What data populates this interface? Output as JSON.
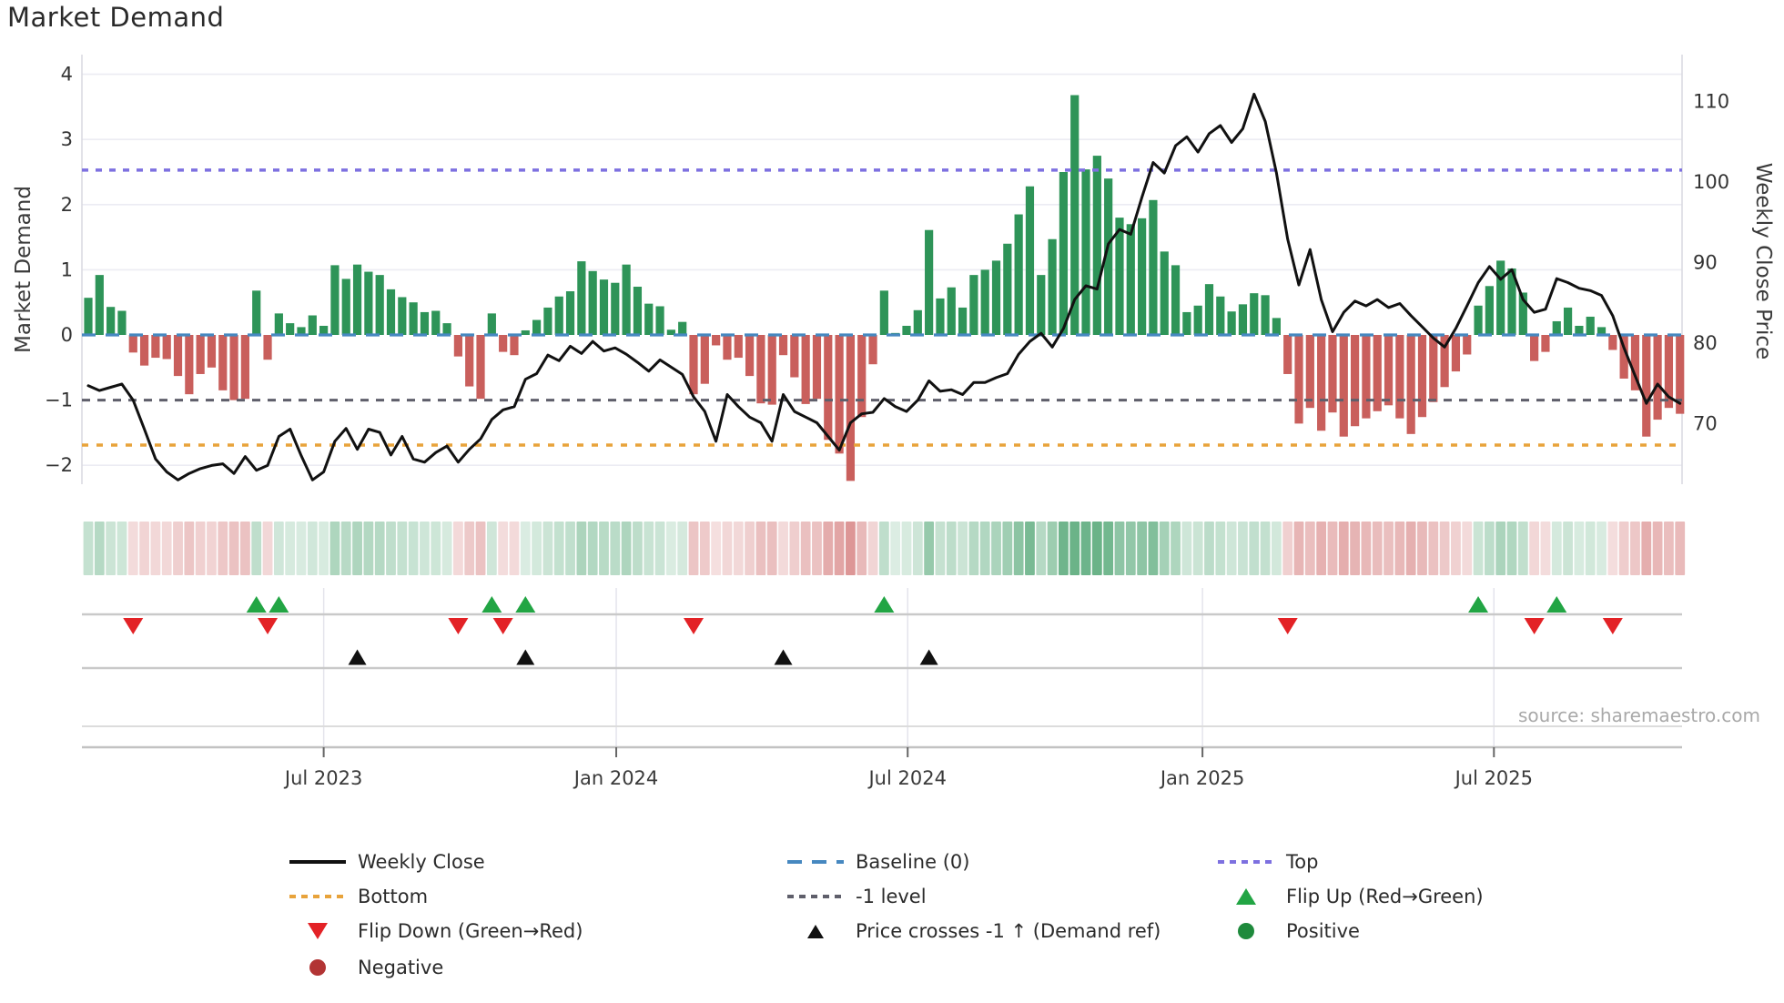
{
  "title": "Market Demand",
  "source": {
    "text": "source: sharemaestro.com"
  },
  "axes": {
    "left_label": "Market Demand",
    "right_label": "Weekly Close Price",
    "left_ticks": [
      4,
      3,
      2,
      1,
      0,
      -1,
      -2
    ],
    "right_ticks": [
      110,
      100,
      90,
      80,
      70
    ],
    "x_ticks": [
      {
        "label": "Jul 2023",
        "week": 21.0
      },
      {
        "label": "Jan 2024",
        "week": 47.1
      },
      {
        "label": "Jul 2024",
        "week": 73.1
      },
      {
        "label": "Jan 2025",
        "week": 99.4
      },
      {
        "label": "Jul 2025",
        "week": 125.4
      }
    ]
  },
  "ref_lines": {
    "baseline": {
      "label": "Baseline (0)",
      "value": 0,
      "color": "#4688c0"
    },
    "top": {
      "label": "Top",
      "value": 2.53,
      "color": "#7d70e0"
    },
    "bottom": {
      "label": "Bottom",
      "value": -1.69,
      "color": "#e8a33b"
    },
    "minus_one": {
      "label": "-1 level",
      "value": -1,
      "color": "#5f5f6b"
    }
  },
  "chart_data": {
    "type": "bar+line",
    "x_unit": "week",
    "start_date": "2023-02-05",
    "n_points": 143,
    "ylim_left": [
      -2.6,
      4.2
    ],
    "ylim_right": [
      62,
      112
    ],
    "grid_demand_levels": [
      4,
      3,
      2,
      1,
      -2
    ],
    "series": [
      {
        "name": "Market Demand",
        "type": "bar",
        "axis": "left",
        "positive_color": "#2e9458",
        "negative_color": "#c95f5c",
        "values": [
          0.57,
          0.92,
          0.43,
          0.37,
          -0.27,
          -0.47,
          -0.35,
          -0.37,
          -0.63,
          -0.91,
          -0.6,
          -0.5,
          -0.85,
          -1.0,
          -0.98,
          0.68,
          -0.38,
          0.33,
          0.18,
          0.12,
          0.3,
          0.14,
          1.07,
          0.86,
          1.08,
          0.97,
          0.92,
          0.7,
          0.58,
          0.5,
          0.35,
          0.37,
          0.18,
          -0.33,
          -0.79,
          -0.98,
          0.33,
          -0.26,
          -0.31,
          0.07,
          0.23,
          0.42,
          0.59,
          0.67,
          1.13,
          0.98,
          0.85,
          0.8,
          1.08,
          0.74,
          0.48,
          0.44,
          0.08,
          0.2,
          -0.91,
          -0.75,
          -0.16,
          -0.38,
          -0.35,
          -0.63,
          -1.05,
          -1.07,
          -0.31,
          -0.65,
          -1.06,
          -0.98,
          -1.61,
          -1.82,
          -2.24,
          -1.26,
          -0.45,
          0.68,
          0.03,
          0.14,
          0.38,
          1.61,
          0.56,
          0.73,
          0.42,
          0.92,
          1.0,
          1.14,
          1.4,
          1.85,
          2.28,
          0.92,
          1.47,
          2.5,
          3.68,
          2.54,
          2.75,
          2.4,
          1.8,
          1.7,
          1.79,
          2.07,
          1.28,
          1.07,
          0.35,
          0.45,
          0.78,
          0.59,
          0.36,
          0.47,
          0.64,
          0.61,
          0.26,
          -0.6,
          -1.36,
          -1.12,
          -1.47,
          -1.19,
          -1.56,
          -1.4,
          -1.28,
          -1.17,
          -1.08,
          -1.28,
          -1.52,
          -1.26,
          -1.03,
          -0.8,
          -0.56,
          -0.3,
          0.45,
          0.75,
          1.14,
          1.02,
          0.65,
          -0.4,
          -0.26,
          0.21,
          0.42,
          0.14,
          0.28,
          0.12,
          -0.23,
          -0.67,
          -0.85,
          -1.56,
          -1.3,
          -1.12,
          -1.21
        ]
      },
      {
        "name": "Weekly Close",
        "type": "line",
        "axis": "right",
        "color": "#111111",
        "values": [
          74.7,
          74.1,
          74.5,
          74.9,
          72.9,
          69.3,
          65.6,
          64.0,
          63.0,
          63.8,
          64.4,
          64.8,
          65.0,
          63.8,
          65.9,
          64.2,
          64.8,
          68.4,
          69.3,
          66.0,
          63.0,
          64.0,
          67.8,
          69.4,
          66.8,
          69.3,
          68.9,
          66.1,
          68.4,
          65.6,
          65.2,
          66.4,
          67.2,
          65.2,
          66.8,
          68.1,
          70.5,
          71.7,
          72.1,
          75.5,
          76.2,
          78.5,
          77.8,
          79.6,
          78.7,
          80.2,
          79.0,
          79.4,
          78.6,
          77.6,
          76.5,
          77.9,
          77.0,
          76.1,
          73.3,
          71.5,
          67.8,
          73.6,
          72.1,
          70.8,
          70.1,
          67.8,
          73.6,
          71.5,
          70.8,
          70.1,
          68.4,
          66.7,
          70.1,
          71.2,
          71.4,
          73.1,
          72.1,
          71.5,
          72.9,
          75.3,
          74.0,
          74.2,
          73.6,
          75.1,
          75.1,
          75.7,
          76.2,
          78.6,
          80.2,
          81.2,
          79.5,
          81.8,
          85.4,
          87.1,
          86.7,
          92.3,
          94.1,
          93.5,
          98.1,
          102.4,
          101.1,
          104.5,
          105.6,
          103.7,
          106.0,
          107.0,
          104.9,
          106.6,
          110.9,
          107.5,
          101.1,
          92.9,
          87.2,
          91.6,
          85.4,
          81.4,
          83.8,
          85.2,
          84.6,
          85.4,
          84.4,
          84.9,
          83.4,
          82.0,
          80.6,
          79.5,
          81.8,
          84.6,
          87.5,
          89.5,
          87.9,
          89.1,
          85.4,
          83.8,
          84.2,
          88.0,
          87.5,
          86.8,
          86.5,
          85.9,
          83.4,
          79.4,
          75.9,
          72.5,
          74.9,
          73.3,
          72.5
        ]
      }
    ],
    "markers": {
      "flip_up": {
        "label": "Flip Up (Red→Green)",
        "color": "#22a544",
        "weeks": [
          15,
          17,
          36,
          39,
          71,
          124,
          131
        ]
      },
      "flip_down": {
        "label": "Flip Down (Green→Red)",
        "color": "#e32226",
        "weeks": [
          4,
          16,
          33,
          37,
          54,
          107,
          129,
          136
        ]
      },
      "price_cross": {
        "label": "Price crosses -1 ↑ (Demand ref)",
        "color": "#111111",
        "weeks": [
          24,
          39,
          62,
          75
        ]
      }
    },
    "heatmap": {
      "derived_from": "Market Demand",
      "positive_color": "#2e9458",
      "negative_color": "#c95f5c"
    }
  },
  "legend": {
    "items": [
      {
        "label": "Weekly Close",
        "icon": "line-black",
        "col": 0,
        "row": 0
      },
      {
        "label": "Bottom",
        "icon": "dotted-orange",
        "col": 0,
        "row": 1
      },
      {
        "label": "Flip Down (Green→Red)",
        "icon": "triangle-down-red",
        "col": 0,
        "row": 2
      },
      {
        "label": "Negative",
        "icon": "circle-darkred",
        "col": 0,
        "row": 3
      },
      {
        "label": "Baseline (0)",
        "icon": "dashed-blue",
        "col": 1,
        "row": 0
      },
      {
        "label": "-1 level",
        "icon": "dotted-gray",
        "col": 1,
        "row": 1
      },
      {
        "label": "Price crosses -1 ↑ (Demand ref)",
        "icon": "triangle-up-black",
        "col": 1,
        "row": 2
      },
      {
        "label": "Top",
        "icon": "dotted-purple",
        "col": 2,
        "row": 0
      },
      {
        "label": "Flip Up (Red→Green)",
        "icon": "triangle-up-green",
        "col": 2,
        "row": 1
      },
      {
        "label": "Positive",
        "icon": "circle-green",
        "col": 2,
        "row": 2
      }
    ]
  }
}
